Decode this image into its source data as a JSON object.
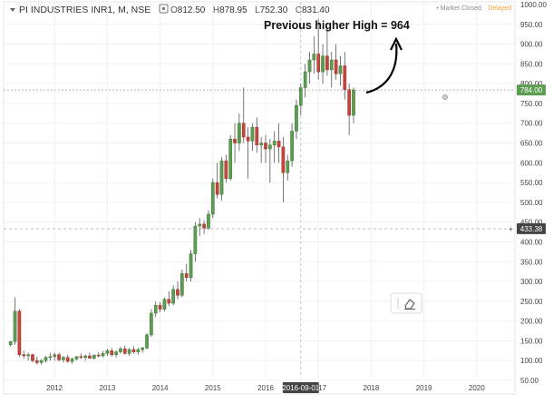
{
  "header": {
    "symbol": "PI INDUSTRIES INR1, M, NSE",
    "ohlc": [
      {
        "key": "O",
        "value": "812.50"
      },
      {
        "key": "H",
        "value": "878.95"
      },
      {
        "key": "L",
        "value": "752.30"
      },
      {
        "key": "C",
        "value": "831.40"
      }
    ],
    "market_status": "• Market Closed",
    "delayed": "Delayed"
  },
  "colors": {
    "up": "#5d9d52",
    "down": "#c4473d",
    "wick": "#555555",
    "current_tag": "#5d9d52",
    "crosshair_tag": "#444444",
    "grid": "#eef0f3",
    "axis_text": "#444444"
  },
  "chart_data": {
    "type": "candlestick",
    "title": "",
    "xlabel": "",
    "ylabel": "",
    "ylim": [
      50,
      1000
    ],
    "xlim": [
      "2011-02",
      "2020-12"
    ],
    "y_ticks": [
      "1000.00",
      "950.00",
      "900.00",
      "850.00",
      "800.00",
      "750.00",
      "700.00",
      "650.00",
      "600.00",
      "550.00",
      "500.00",
      "450.00",
      "400.00",
      "350.00",
      "300.00",
      "250.00",
      "200.00",
      "150.00",
      "100.00",
      "50.00"
    ],
    "x_ticks": [
      "2012",
      "2013",
      "2014",
      "2015",
      "2016",
      "2017",
      "2018",
      "2019",
      "2020"
    ],
    "current_price_label": "784.00",
    "crosshair_price_label": "433.38",
    "crosshair_date_label": "2016-09-01",
    "annotation": "Previous higher High = 964",
    "candles": [
      {
        "d": "2011-03",
        "o": 140,
        "h": 150,
        "l": 135,
        "c": 148
      },
      {
        "d": "2011-04",
        "o": 148,
        "h": 260,
        "l": 140,
        "c": 225
      },
      {
        "d": "2011-05",
        "o": 225,
        "h": 230,
        "l": 110,
        "c": 115
      },
      {
        "d": "2011-06",
        "o": 115,
        "h": 125,
        "l": 105,
        "c": 112
      },
      {
        "d": "2011-07",
        "o": 112,
        "h": 120,
        "l": 100,
        "c": 115
      },
      {
        "d": "2011-08",
        "o": 115,
        "h": 118,
        "l": 95,
        "c": 100
      },
      {
        "d": "2011-09",
        "o": 100,
        "h": 110,
        "l": 90,
        "c": 95
      },
      {
        "d": "2011-10",
        "o": 95,
        "h": 105,
        "l": 90,
        "c": 100
      },
      {
        "d": "2011-11",
        "o": 100,
        "h": 112,
        "l": 95,
        "c": 108
      },
      {
        "d": "2011-12",
        "o": 108,
        "h": 120,
        "l": 100,
        "c": 110
      },
      {
        "d": "2012-01",
        "o": 110,
        "h": 120,
        "l": 100,
        "c": 115
      },
      {
        "d": "2012-02",
        "o": 115,
        "h": 120,
        "l": 98,
        "c": 102
      },
      {
        "d": "2012-03",
        "o": 102,
        "h": 112,
        "l": 95,
        "c": 108
      },
      {
        "d": "2012-04",
        "o": 108,
        "h": 115,
        "l": 95,
        "c": 98
      },
      {
        "d": "2012-05",
        "o": 98,
        "h": 108,
        "l": 92,
        "c": 104
      },
      {
        "d": "2012-06",
        "o": 104,
        "h": 112,
        "l": 100,
        "c": 110
      },
      {
        "d": "2012-07",
        "o": 110,
        "h": 118,
        "l": 104,
        "c": 108
      },
      {
        "d": "2012-08",
        "o": 108,
        "h": 115,
        "l": 100,
        "c": 112
      },
      {
        "d": "2012-09",
        "o": 112,
        "h": 120,
        "l": 105,
        "c": 106
      },
      {
        "d": "2012-10",
        "o": 106,
        "h": 116,
        "l": 102,
        "c": 114
      },
      {
        "d": "2012-11",
        "o": 114,
        "h": 122,
        "l": 108,
        "c": 112
      },
      {
        "d": "2012-12",
        "o": 112,
        "h": 125,
        "l": 108,
        "c": 118
      },
      {
        "d": "2013-01",
        "o": 118,
        "h": 130,
        "l": 112,
        "c": 125
      },
      {
        "d": "2013-02",
        "o": 125,
        "h": 132,
        "l": 110,
        "c": 115
      },
      {
        "d": "2013-03",
        "o": 115,
        "h": 126,
        "l": 108,
        "c": 122
      },
      {
        "d": "2013-04",
        "o": 122,
        "h": 135,
        "l": 118,
        "c": 130
      },
      {
        "d": "2013-05",
        "o": 130,
        "h": 138,
        "l": 115,
        "c": 118
      },
      {
        "d": "2013-06",
        "o": 118,
        "h": 132,
        "l": 112,
        "c": 128
      },
      {
        "d": "2013-07",
        "o": 128,
        "h": 136,
        "l": 118,
        "c": 122
      },
      {
        "d": "2013-08",
        "o": 122,
        "h": 132,
        "l": 115,
        "c": 128
      },
      {
        "d": "2013-09",
        "o": 128,
        "h": 135,
        "l": 120,
        "c": 132
      },
      {
        "d": "2013-10",
        "o": 132,
        "h": 170,
        "l": 128,
        "c": 165
      },
      {
        "d": "2013-11",
        "o": 165,
        "h": 230,
        "l": 160,
        "c": 220
      },
      {
        "d": "2013-12",
        "o": 220,
        "h": 250,
        "l": 210,
        "c": 240
      },
      {
        "d": "2014-01",
        "o": 240,
        "h": 248,
        "l": 222,
        "c": 230
      },
      {
        "d": "2014-02",
        "o": 230,
        "h": 260,
        "l": 225,
        "c": 255
      },
      {
        "d": "2014-03",
        "o": 255,
        "h": 275,
        "l": 238,
        "c": 245
      },
      {
        "d": "2014-04",
        "o": 245,
        "h": 290,
        "l": 240,
        "c": 280
      },
      {
        "d": "2014-05",
        "o": 280,
        "h": 300,
        "l": 255,
        "c": 265
      },
      {
        "d": "2014-06",
        "o": 265,
        "h": 330,
        "l": 260,
        "c": 320
      },
      {
        "d": "2014-07",
        "o": 320,
        "h": 345,
        "l": 300,
        "c": 310
      },
      {
        "d": "2014-08",
        "o": 310,
        "h": 380,
        "l": 300,
        "c": 370
      },
      {
        "d": "2014-09",
        "o": 370,
        "h": 450,
        "l": 350,
        "c": 440
      },
      {
        "d": "2014-10",
        "o": 440,
        "h": 460,
        "l": 415,
        "c": 445
      },
      {
        "d": "2014-11",
        "o": 445,
        "h": 455,
        "l": 420,
        "c": 435
      },
      {
        "d": "2014-12",
        "o": 435,
        "h": 480,
        "l": 430,
        "c": 470
      },
      {
        "d": "2015-01",
        "o": 470,
        "h": 560,
        "l": 460,
        "c": 550
      },
      {
        "d": "2015-02",
        "o": 550,
        "h": 600,
        "l": 510,
        "c": 520
      },
      {
        "d": "2015-03",
        "o": 520,
        "h": 615,
        "l": 505,
        "c": 605
      },
      {
        "d": "2015-04",
        "o": 605,
        "h": 620,
        "l": 550,
        "c": 560
      },
      {
        "d": "2015-05",
        "o": 560,
        "h": 670,
        "l": 555,
        "c": 660
      },
      {
        "d": "2015-06",
        "o": 660,
        "h": 700,
        "l": 600,
        "c": 650
      },
      {
        "d": "2015-07",
        "o": 650,
        "h": 725,
        "l": 630,
        "c": 700
      },
      {
        "d": "2015-08",
        "o": 700,
        "h": 790,
        "l": 650,
        "c": 665
      },
      {
        "d": "2015-09",
        "o": 665,
        "h": 690,
        "l": 560,
        "c": 655
      },
      {
        "d": "2015-10",
        "o": 655,
        "h": 700,
        "l": 630,
        "c": 690
      },
      {
        "d": "2015-11",
        "o": 690,
        "h": 715,
        "l": 625,
        "c": 645
      },
      {
        "d": "2015-12",
        "o": 645,
        "h": 665,
        "l": 600,
        "c": 650
      },
      {
        "d": "2016-01",
        "o": 650,
        "h": 670,
        "l": 600,
        "c": 635
      },
      {
        "d": "2016-02",
        "o": 635,
        "h": 660,
        "l": 550,
        "c": 645
      },
      {
        "d": "2016-03",
        "o": 645,
        "h": 680,
        "l": 600,
        "c": 655
      },
      {
        "d": "2016-04",
        "o": 655,
        "h": 700,
        "l": 600,
        "c": 640
      },
      {
        "d": "2016-05",
        "o": 640,
        "h": 665,
        "l": 500,
        "c": 575
      },
      {
        "d": "2016-06",
        "o": 575,
        "h": 620,
        "l": 555,
        "c": 605
      },
      {
        "d": "2016-07",
        "o": 605,
        "h": 700,
        "l": 590,
        "c": 680
      },
      {
        "d": "2016-08",
        "o": 680,
        "h": 760,
        "l": 660,
        "c": 745
      },
      {
        "d": "2016-09",
        "o": 745,
        "h": 800,
        "l": 720,
        "c": 790
      },
      {
        "d": "2016-10",
        "o": 790,
        "h": 850,
        "l": 765,
        "c": 830
      },
      {
        "d": "2016-11",
        "o": 830,
        "h": 880,
        "l": 800,
        "c": 860
      },
      {
        "d": "2016-12",
        "o": 860,
        "h": 920,
        "l": 825,
        "c": 875
      },
      {
        "d": "2017-01",
        "o": 875,
        "h": 964,
        "l": 810,
        "c": 830
      },
      {
        "d": "2017-02",
        "o": 830,
        "h": 900,
        "l": 800,
        "c": 870
      },
      {
        "d": "2017-03",
        "o": 870,
        "h": 940,
        "l": 820,
        "c": 835
      },
      {
        "d": "2017-04",
        "o": 835,
        "h": 880,
        "l": 790,
        "c": 860
      },
      {
        "d": "2017-05",
        "o": 860,
        "h": 900,
        "l": 810,
        "c": 825
      },
      {
        "d": "2017-06",
        "o": 825,
        "h": 870,
        "l": 795,
        "c": 845
      },
      {
        "d": "2017-07",
        "o": 845,
        "h": 880,
        "l": 760,
        "c": 785
      },
      {
        "d": "2017-08",
        "o": 785,
        "h": 800,
        "l": 670,
        "c": 720
      },
      {
        "d": "2017-09",
        "o": 720,
        "h": 790,
        "l": 700,
        "c": 784
      }
    ]
  }
}
